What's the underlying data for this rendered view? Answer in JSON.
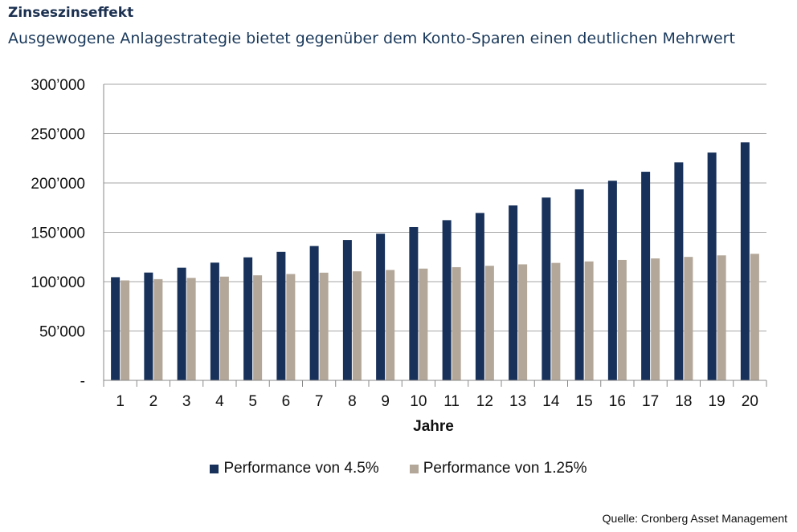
{
  "header": {
    "title": "Zinseszinseffekt",
    "subtitle": "Ausgewogene Anlagestrategie bietet gegenüber dem Konto-Sparen einen deutlichen Mehrwert"
  },
  "chart_data": {
    "type": "bar",
    "title": "Zinseszinseffekt",
    "subtitle": "Ausgewogene Anlagestrategie bietet gegenüber dem Konto-Sparen einen deutlichen Mehrwert",
    "xlabel": "Jahre",
    "ylabel": "",
    "categories": [
      "1",
      "2",
      "3",
      "4",
      "5",
      "6",
      "7",
      "8",
      "9",
      "10",
      "11",
      "12",
      "13",
      "14",
      "15",
      "16",
      "17",
      "18",
      "19",
      "20"
    ],
    "series": [
      {
        "name": "Performance von 4.5%",
        "color": "#17315a",
        "values": [
          104500,
          109203,
          114117,
          119252,
          124618,
          130226,
          136086,
          142210,
          148610,
          155297,
          162285,
          169588,
          177220,
          185194,
          193528,
          202237,
          211338,
          220848,
          230786,
          241171
        ]
      },
      {
        "name": "Performance von 1.25%",
        "color": "#b3a799",
        "values": [
          101250,
          102516,
          103797,
          105095,
          106409,
          107739,
          109085,
          110449,
          111830,
          113227,
          114642,
          116075,
          117526,
          118995,
          120483,
          121989,
          123514,
          125058,
          126621,
          128204
        ]
      }
    ],
    "ylim": [
      0,
      300000
    ],
    "yticks": [
      0,
      50000,
      100000,
      150000,
      200000,
      250000,
      300000
    ],
    "ytick_labels": [
      "-",
      "50’000",
      "100’000",
      "150’000",
      "200’000",
      "250’000",
      "300’000"
    ],
    "grid": true,
    "legend_position": "bottom-center"
  },
  "footer": {
    "source": "Quelle: Cronberg Asset Management"
  }
}
